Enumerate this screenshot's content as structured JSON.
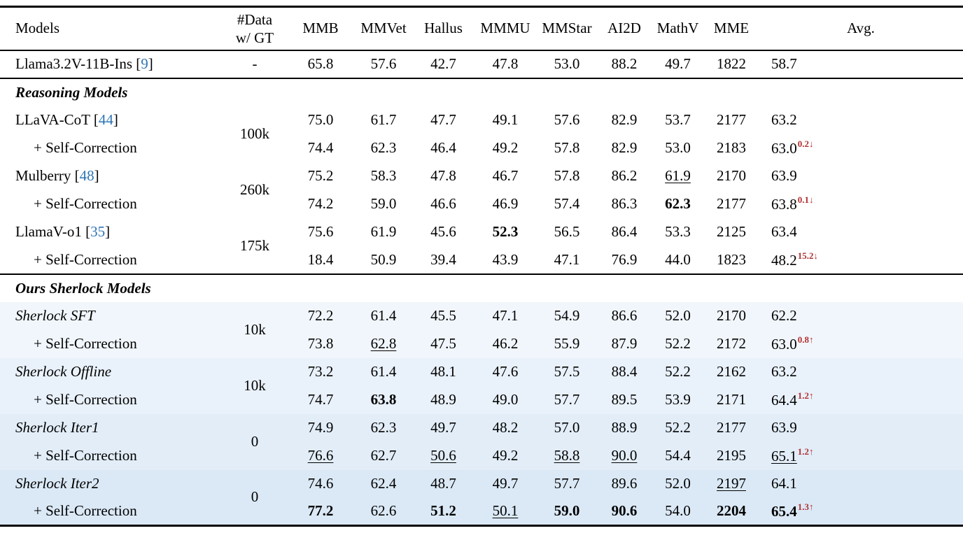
{
  "colors": {
    "citation": "#2E74B5",
    "delta": "#B03030",
    "sherlock_row_bands": [
      "#F1F6FC",
      "#E9F1FA",
      "#E2EDF8",
      "#DBE9F6"
    ]
  },
  "table": {
    "columns": [
      {
        "key": "models",
        "label": "Models"
      },
      {
        "key": "data-gt",
        "label_lines": [
          "#Data",
          "w/ GT"
        ]
      },
      {
        "key": "mmb",
        "label": "MMB"
      },
      {
        "key": "mmvet",
        "label": "MMVet"
      },
      {
        "key": "hallus",
        "label": "Hallus"
      },
      {
        "key": "mmmu",
        "label": "MMMU"
      },
      {
        "key": "mmstar",
        "label": "MMStar"
      },
      {
        "key": "ai2d",
        "label": "AI2D"
      },
      {
        "key": "mathv",
        "label": "MathV"
      },
      {
        "key": "mme",
        "label": "MME"
      },
      {
        "key": "avg",
        "label": "Avg."
      }
    ],
    "rows": [
      {
        "kind": "model",
        "name": "Llama3.2V-11B-Ins",
        "cite": "9",
        "gt": {
          "text": "-",
          "span": 1
        },
        "rule_after": true,
        "cells": [
          {
            "t": "65.8"
          },
          {
            "t": "57.6"
          },
          {
            "t": "42.7"
          },
          {
            "t": "47.8"
          },
          {
            "t": "53.0"
          },
          {
            "t": "88.2"
          },
          {
            "t": "49.7"
          },
          {
            "t": "1822"
          },
          {
            "t": "58.7"
          }
        ]
      },
      {
        "kind": "section",
        "title": "Reasoning Models"
      },
      {
        "kind": "model",
        "name": "LLaVA-CoT",
        "cite": "44",
        "gt": {
          "text": "100k",
          "span": 2
        },
        "cells": [
          {
            "t": "75.0"
          },
          {
            "t": "61.7"
          },
          {
            "t": "47.7"
          },
          {
            "t": "49.1"
          },
          {
            "t": "57.6"
          },
          {
            "t": "82.9"
          },
          {
            "t": "53.7"
          },
          {
            "t": "2177"
          },
          {
            "t": "63.2"
          }
        ]
      },
      {
        "kind": "sub",
        "name": "+ Self-Correction",
        "cells": [
          {
            "t": "74.4"
          },
          {
            "t": "62.3"
          },
          {
            "t": "46.4"
          },
          {
            "t": "49.2"
          },
          {
            "t": "57.8"
          },
          {
            "t": "82.9"
          },
          {
            "t": "53.0"
          },
          {
            "t": "2183"
          },
          {
            "t": "63.0",
            "sup": "0.2",
            "dir": "down"
          }
        ]
      },
      {
        "kind": "model",
        "name": "Mulberry",
        "cite": "48",
        "gt": {
          "text": "260k",
          "span": 2
        },
        "cells": [
          {
            "t": "75.2"
          },
          {
            "t": "58.3"
          },
          {
            "t": "47.8"
          },
          {
            "t": "46.7"
          },
          {
            "t": "57.8"
          },
          {
            "t": "86.2"
          },
          {
            "t": "61.9",
            "u": true
          },
          {
            "t": "2170"
          },
          {
            "t": "63.9"
          }
        ]
      },
      {
        "kind": "sub",
        "name": "+ Self-Correction",
        "cells": [
          {
            "t": "74.2"
          },
          {
            "t": "59.0"
          },
          {
            "t": "46.6"
          },
          {
            "t": "46.9"
          },
          {
            "t": "57.4"
          },
          {
            "t": "86.3"
          },
          {
            "t": "62.3",
            "b": true
          },
          {
            "t": "2177"
          },
          {
            "t": "63.8",
            "sup": "0.1",
            "dir": "down"
          }
        ]
      },
      {
        "kind": "model",
        "name": "LlamaV-o1",
        "cite": "35",
        "gt": {
          "text": "175k",
          "span": 2
        },
        "cells": [
          {
            "t": "75.6"
          },
          {
            "t": "61.9"
          },
          {
            "t": "45.6"
          },
          {
            "t": "52.3",
            "b": true
          },
          {
            "t": "56.5"
          },
          {
            "t": "86.4"
          },
          {
            "t": "53.3"
          },
          {
            "t": "2125"
          },
          {
            "t": "63.4"
          }
        ]
      },
      {
        "kind": "sub",
        "name": "+ Self-Correction",
        "rule_after": true,
        "cells": [
          {
            "t": "18.4"
          },
          {
            "t": "50.9"
          },
          {
            "t": "39.4"
          },
          {
            "t": "43.9"
          },
          {
            "t": "47.1"
          },
          {
            "t": "76.9"
          },
          {
            "t": "44.0"
          },
          {
            "t": "1823"
          },
          {
            "t": "48.2",
            "sup": "15.2",
            "dir": "down"
          }
        ]
      },
      {
        "kind": "section",
        "title": "Ours Sherlock Models"
      },
      {
        "kind": "model",
        "name": "Sherlock SFT",
        "italic": true,
        "gt": {
          "text": "10k",
          "span": 2
        },
        "bg": "#F1F6FC",
        "cells": [
          {
            "t": "72.2"
          },
          {
            "t": "61.4"
          },
          {
            "t": "45.5"
          },
          {
            "t": "47.1"
          },
          {
            "t": "54.9"
          },
          {
            "t": "86.6"
          },
          {
            "t": "52.0"
          },
          {
            "t": "2170"
          },
          {
            "t": "62.2"
          }
        ]
      },
      {
        "kind": "sub",
        "name": "+ Self-Correction",
        "bg": "#F1F6FC",
        "cells": [
          {
            "t": "73.8"
          },
          {
            "t": "62.8",
            "u": true
          },
          {
            "t": "47.5"
          },
          {
            "t": "46.2"
          },
          {
            "t": "55.9"
          },
          {
            "t": "87.9"
          },
          {
            "t": "52.2"
          },
          {
            "t": "2172"
          },
          {
            "t": "63.0",
            "sup": "0.8",
            "dir": "up"
          }
        ]
      },
      {
        "kind": "model",
        "name": "Sherlock Offline",
        "italic": true,
        "gt": {
          "text": "10k",
          "span": 2
        },
        "bg": "#E9F1FA",
        "cells": [
          {
            "t": "73.2"
          },
          {
            "t": "61.4"
          },
          {
            "t": "48.1"
          },
          {
            "t": "47.6"
          },
          {
            "t": "57.5"
          },
          {
            "t": "88.4"
          },
          {
            "t": "52.2"
          },
          {
            "t": "2162"
          },
          {
            "t": "63.2"
          }
        ]
      },
      {
        "kind": "sub",
        "name": "+ Self-Correction",
        "bg": "#E9F1FA",
        "cells": [
          {
            "t": "74.7"
          },
          {
            "t": "63.8",
            "b": true
          },
          {
            "t": "48.9"
          },
          {
            "t": "49.0"
          },
          {
            "t": "57.7"
          },
          {
            "t": "89.5"
          },
          {
            "t": "53.9"
          },
          {
            "t": "2171"
          },
          {
            "t": "64.4",
            "sup": "1.2",
            "dir": "up"
          }
        ]
      },
      {
        "kind": "model",
        "name": "Sherlock Iter1",
        "italic": true,
        "gt": {
          "text": "0",
          "span": 2
        },
        "bg": "#E2EDF8",
        "cells": [
          {
            "t": "74.9"
          },
          {
            "t": "62.3"
          },
          {
            "t": "49.7"
          },
          {
            "t": "48.2"
          },
          {
            "t": "57.0"
          },
          {
            "t": "88.9"
          },
          {
            "t": "52.2"
          },
          {
            "t": "2177"
          },
          {
            "t": "63.9"
          }
        ]
      },
      {
        "kind": "sub",
        "name": "+ Self-Correction",
        "bg": "#E2EDF8",
        "cells": [
          {
            "t": "76.6",
            "u": true
          },
          {
            "t": "62.7"
          },
          {
            "t": "50.6",
            "u": true
          },
          {
            "t": "49.2"
          },
          {
            "t": "58.8",
            "u": true
          },
          {
            "t": "90.0",
            "u": true
          },
          {
            "t": "54.4"
          },
          {
            "t": "2195"
          },
          {
            "t": "65.1",
            "u": true,
            "sup": "1.2",
            "dir": "up"
          }
        ]
      },
      {
        "kind": "model",
        "name": "Sherlock Iter2",
        "italic": true,
        "gt": {
          "text": "0",
          "span": 2
        },
        "bg": "#DBE9F6",
        "cells": [
          {
            "t": "74.6"
          },
          {
            "t": "62.4"
          },
          {
            "t": "48.7"
          },
          {
            "t": "49.7"
          },
          {
            "t": "57.7"
          },
          {
            "t": "89.6"
          },
          {
            "t": "52.0"
          },
          {
            "t": "2197",
            "u": true
          },
          {
            "t": "64.1"
          }
        ]
      },
      {
        "kind": "sub",
        "name": "+ Self-Correction",
        "bg": "#DBE9F6",
        "cells": [
          {
            "t": "77.2",
            "b": true
          },
          {
            "t": "62.6"
          },
          {
            "t": "51.2",
            "b": true
          },
          {
            "t": "50.1",
            "u": true
          },
          {
            "t": "59.0",
            "b": true
          },
          {
            "t": "90.6",
            "b": true
          },
          {
            "t": "54.0"
          },
          {
            "t": "2204",
            "b": true
          },
          {
            "t": "65.4",
            "b": true,
            "sup": "1.3",
            "dir": "up"
          }
        ]
      }
    ],
    "arrows": {
      "down": "↓",
      "up": "↑"
    }
  }
}
